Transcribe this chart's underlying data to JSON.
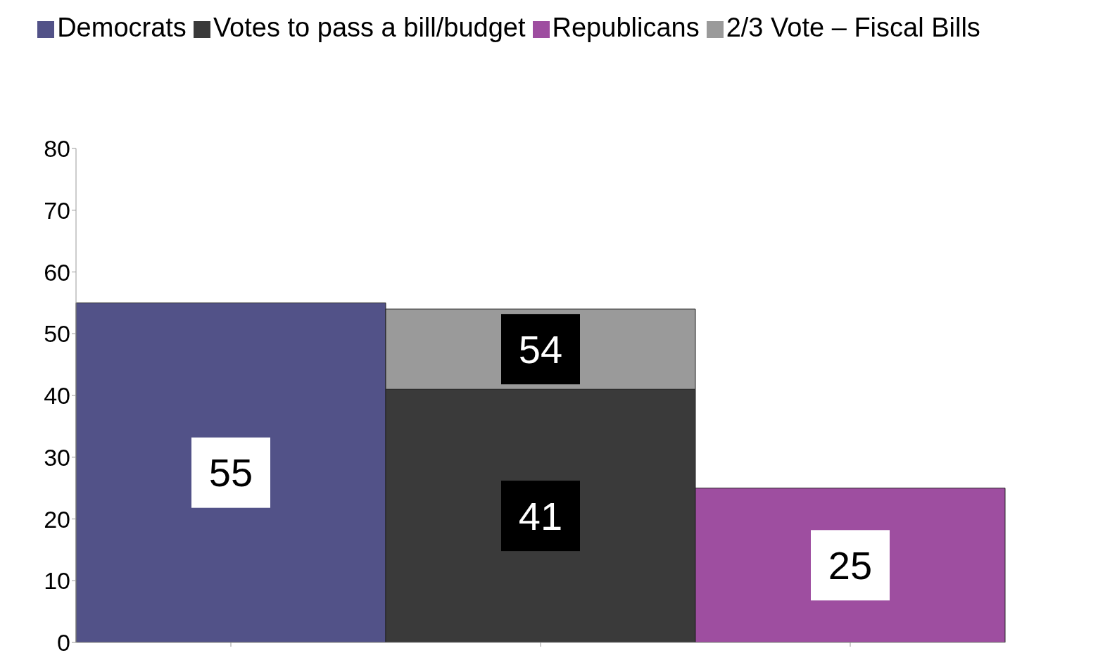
{
  "chart_data": {
    "type": "bar",
    "stacked": true,
    "categories": [
      null,
      null,
      null
    ],
    "series": [
      {
        "name": "Democrats",
        "color": "#525288",
        "values": [
          55,
          null,
          null
        ],
        "value_labels": [
          "55",
          null,
          null
        ]
      },
      {
        "name": "Votes to pass a bill/budget",
        "color": "#3a3a3a",
        "values": [
          null,
          41,
          null
        ],
        "value_labels": [
          null,
          "41",
          null
        ]
      },
      {
        "name": "Republicans",
        "color": "#9e4ea0",
        "values": [
          null,
          null,
          25
        ],
        "value_labels": [
          null,
          null,
          "25"
        ]
      },
      {
        "name": "2/3 Vote – Fiscal Bills",
        "color": "#9a9a9a",
        "values": [
          null,
          13,
          null
        ]
      }
    ],
    "totals": [
      null,
      "54",
      null
    ],
    "ylim": [
      0,
      80
    ],
    "yticks": [
      0,
      10,
      20,
      30,
      40,
      50,
      60,
      70,
      80
    ],
    "grid": false,
    "legend": "top"
  }
}
